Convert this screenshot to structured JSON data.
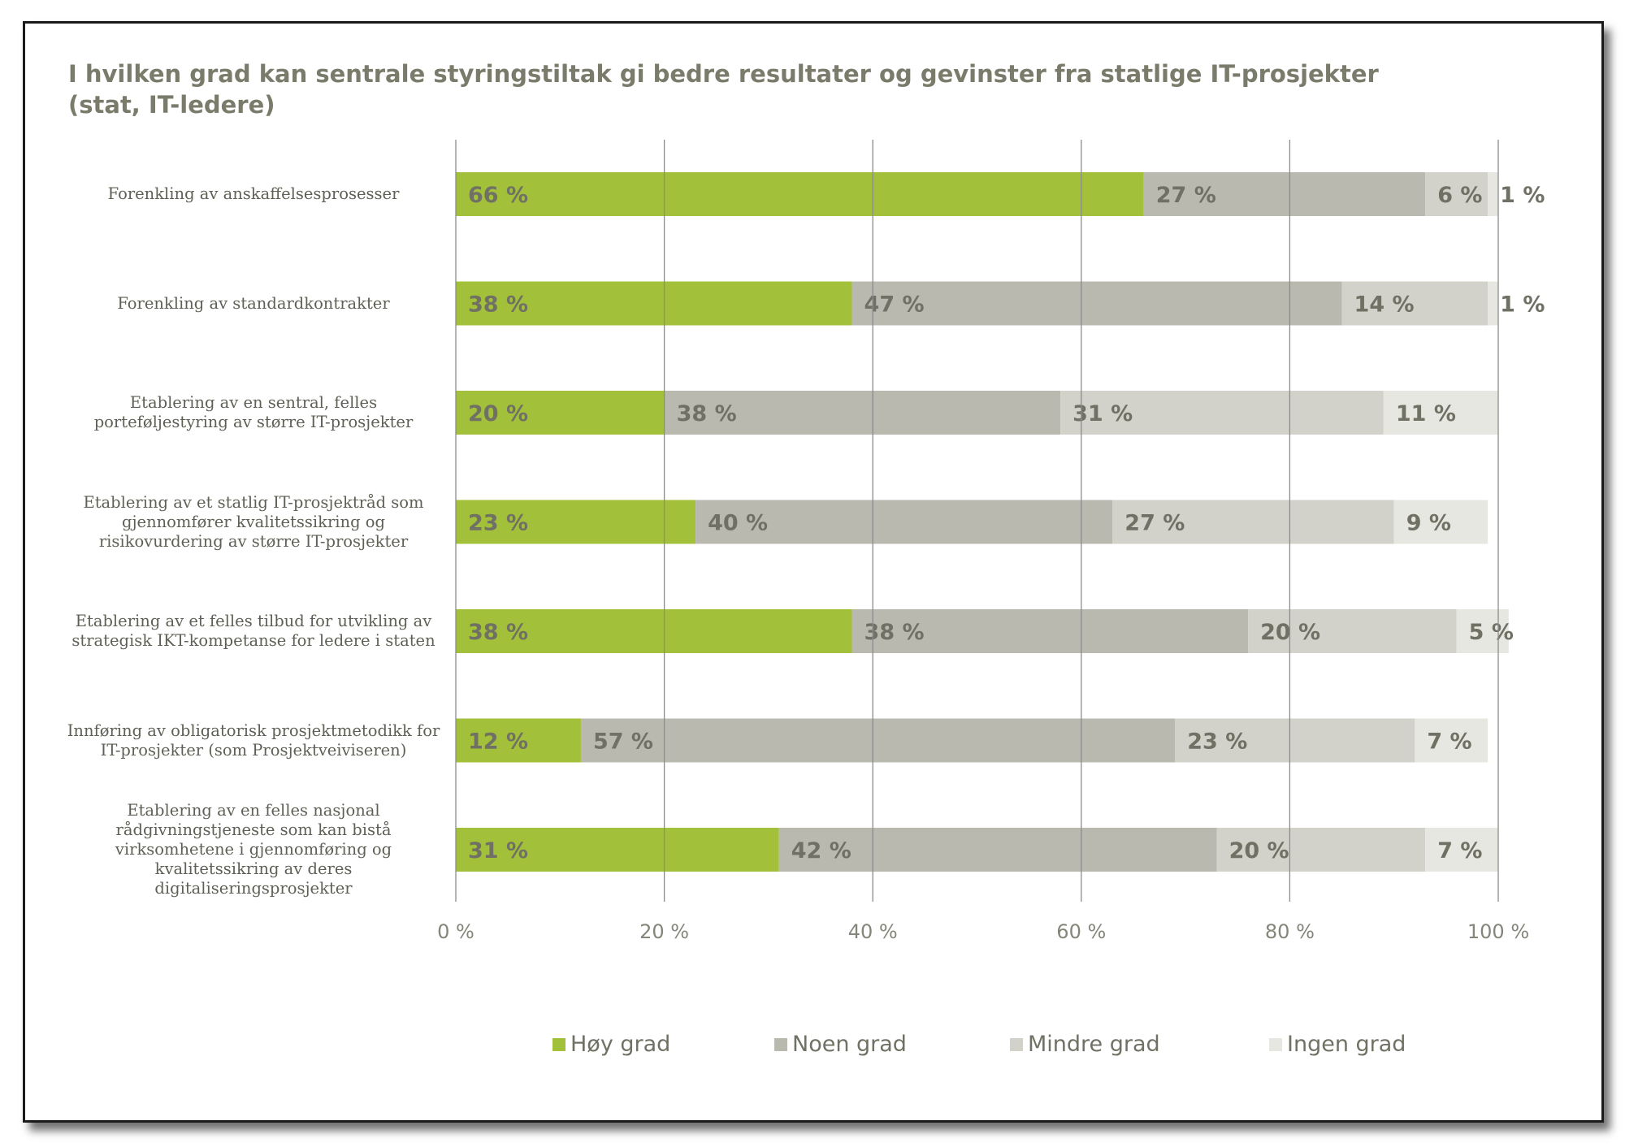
{
  "title": "I hvilken grad kan sentrale styringstiltak gi bedre resultater og gevinster fra statlige IT-prosjekter (stat, IT-ledere)",
  "colors": {
    "hoy": "#a2c03a",
    "noen": "#b9b9b0",
    "mindre": "#d2d2ca",
    "ingen": "#e7e7e2",
    "grid": "#8c8c8c",
    "bar_label": "#707064",
    "axis_label": "#85857a"
  },
  "chart_data": {
    "type": "bar",
    "orientation": "horizontal",
    "stacked": true,
    "title": "I hvilken grad kan sentrale styringstiltak gi bedre resultater og gevinster fra statlige IT-prosjekter (stat, IT-ledere)",
    "categories": [
      "Forenkling av anskaffelsesprosesser",
      "Forenkling av standardkontrakter",
      "Etablering av en sentral, felles porteføljestyring av større IT-prosjekter",
      "Etablering av et statlig IT-prosjektråd som gjennomfører kvalitetssikring og risikovurdering av større IT-prosjekter",
      "Etablering av et felles tilbud for utvikling av strategisk IKT-kompetanse for ledere i staten",
      "Innføring av obligatorisk prosjektmetodikk for IT-prosjekter (som Prosjektveiviseren)",
      "Etablering av en felles nasjonal rådgivningstjeneste som kan bistå virksomhetene i gjennomføring og kvalitetssikring av deres digitaliseringsprosjekter"
    ],
    "series": [
      {
        "name": "Høy grad",
        "color": "#a2c03a",
        "values": [
          66,
          38,
          20,
          23,
          38,
          12,
          31
        ]
      },
      {
        "name": "Noen grad",
        "color": "#b9b9b0",
        "values": [
          27,
          47,
          38,
          40,
          38,
          57,
          42
        ]
      },
      {
        "name": "Mindre grad",
        "color": "#d2d2ca",
        "values": [
          6,
          14,
          31,
          27,
          20,
          23,
          20
        ]
      },
      {
        "name": "Ingen grad",
        "color": "#e7e7e2",
        "values": [
          1,
          1,
          11,
          9,
          5,
          7,
          7
        ]
      }
    ],
    "data_labels": [
      [
        "66 %",
        "27 %",
        "6 %",
        "1 %"
      ],
      [
        "38 %",
        "47 %",
        "14 %",
        "1 %"
      ],
      [
        "20 %",
        "38 %",
        "31 %",
        "11 %"
      ],
      [
        "23 %",
        "40 %",
        "27 %",
        "9 %"
      ],
      [
        "38 %",
        "38 %",
        "20 %",
        "5 %"
      ],
      [
        "12 %",
        "57 %",
        "23 %",
        "7 %"
      ],
      [
        "31 %",
        "42 %",
        "20 %",
        "7 %"
      ]
    ],
    "xlim": [
      0,
      100
    ],
    "x_ticks": [
      0,
      20,
      40,
      60,
      80,
      100
    ],
    "x_tick_labels": [
      "0 %",
      "20 %",
      "40 %",
      "60 %",
      "80 %",
      "100 %"
    ],
    "grid": true,
    "legend_position": "bottom"
  }
}
